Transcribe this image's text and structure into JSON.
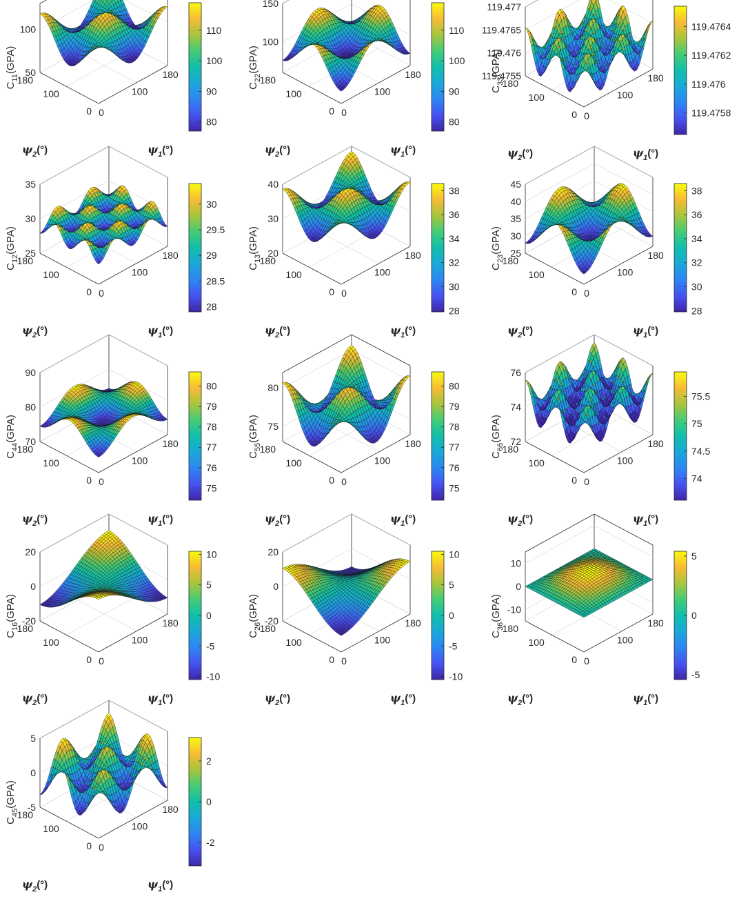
{
  "chart_data": [
    {
      "type": "surface",
      "id": "c11",
      "ylabel_main": "C",
      "ylabel_sub": "11",
      "ylabel_unit": "(GPA)",
      "zlim": [
        50,
        130
      ],
      "zticks": [
        "50",
        "100"
      ],
      "ztick_vals": [
        50,
        100
      ],
      "colorbar": {
        "range": [
          77,
          119
        ],
        "ticks": [
          "80",
          "90",
          "100",
          "110"
        ],
        "tick_vals": [
          80,
          90,
          100,
          110
        ]
      },
      "surface": {
        "base": 97,
        "a": 21,
        "b": 0,
        "c": 0,
        "d": 0,
        "e": 0
      },
      "x": {
        "label": "ψ",
        "sub": "1",
        "ticks": [
          "0",
          "100",
          "180"
        ]
      },
      "y": {
        "label": "ψ",
        "sub": "2",
        "ticks": [
          "0",
          "100",
          "180"
        ]
      }
    },
    {
      "type": "surface",
      "id": "c22",
      "ylabel_main": "C",
      "ylabel_sub": "22",
      "ylabel_unit": "(GPA)",
      "zlim": [
        60,
        150
      ],
      "zticks": [
        "100",
        "150"
      ],
      "ztick_vals": [
        100,
        150
      ],
      "colorbar": {
        "range": [
          77,
          119
        ],
        "ticks": [
          "80",
          "90",
          "100",
          "110"
        ],
        "tick_vals": [
          80,
          90,
          100,
          110
        ]
      },
      "surface": {
        "base": 97,
        "a": -21,
        "b": 0,
        "c": 0,
        "d": 0,
        "e": 0
      },
      "x": {
        "label": "ψ",
        "sub": "1",
        "ticks": [
          "0",
          "100",
          "180"
        ]
      },
      "y": {
        "label": "ψ",
        "sub": "2",
        "ticks": [
          "0",
          "100",
          "180"
        ]
      }
    },
    {
      "type": "surface",
      "id": "c33",
      "ylabel_main": "C",
      "ylabel_sub": "33",
      "ylabel_unit": "(GPA)",
      "zlim": [
        119.4755,
        119.477
      ],
      "zticks": [
        "119.4755",
        "119.476",
        "119.4765",
        "119.477"
      ],
      "ztick_vals": [
        119.4755,
        119.476,
        119.4765,
        119.477
      ],
      "colorbar": {
        "range": [
          119.47565,
          119.47654
        ],
        "ticks": [
          "119.4758",
          "119.476",
          "119.4762",
          "119.4764"
        ],
        "tick_vals": [
          119.4758,
          119.476,
          119.4762,
          119.4764
        ]
      },
      "surface": {
        "base": 119.4761,
        "a": 0,
        "b": 0,
        "c": 0.00044,
        "d": 0,
        "e": 0
      },
      "x": {
        "label": "ψ",
        "sub": "1",
        "ticks": [
          "0",
          "100",
          "180"
        ]
      },
      "y": {
        "label": "ψ",
        "sub": "2",
        "ticks": [
          "0",
          "100",
          "180"
        ]
      }
    },
    {
      "type": "surface",
      "id": "c12",
      "ylabel_main": "C",
      "ylabel_sub": "12",
      "ylabel_unit": "(GPA)",
      "zlim": [
        25,
        35
      ],
      "zticks": [
        "25",
        "30",
        "35"
      ],
      "ztick_vals": [
        25,
        30,
        35
      ],
      "colorbar": {
        "range": [
          27.9,
          30.4
        ],
        "ticks": [
          "28",
          "28.5",
          "29",
          "29.5",
          "30"
        ],
        "tick_vals": [
          28,
          28.5,
          29,
          29.5,
          30
        ]
      },
      "surface": {
        "base": 29.15,
        "a": 0,
        "b": 0,
        "c": -1.25,
        "d": 0,
        "e": 0
      },
      "x": {
        "label": "ψ",
        "sub": "1",
        "ticks": [
          "0",
          "100",
          "180"
        ]
      },
      "y": {
        "label": "ψ",
        "sub": "2",
        "ticks": [
          "0",
          "100",
          "180"
        ]
      }
    },
    {
      "type": "surface",
      "id": "c13",
      "ylabel_main": "C",
      "ylabel_sub": "13",
      "ylabel_unit": "(GPA)",
      "zlim": [
        20,
        40
      ],
      "zticks": [
        "20",
        "30",
        "40"
      ],
      "ztick_vals": [
        20,
        30,
        40
      ],
      "colorbar": {
        "range": [
          27.9,
          38.6
        ],
        "ticks": [
          "28",
          "30",
          "32",
          "34",
          "36",
          "38"
        ],
        "tick_vals": [
          28,
          30,
          32,
          34,
          36,
          38
        ]
      },
      "surface": {
        "base": 33.25,
        "a": 5.3,
        "b": 0,
        "c": 0,
        "d": 0,
        "e": 0
      },
      "x": {
        "label": "ψ",
        "sub": "1",
        "ticks": [
          "0",
          "100",
          "180"
        ]
      },
      "y": {
        "label": "ψ",
        "sub": "2",
        "ticks": [
          "0",
          "100",
          "180"
        ]
      }
    },
    {
      "type": "surface",
      "id": "c23",
      "ylabel_main": "C",
      "ylabel_sub": "23",
      "ylabel_unit": "(GPA)",
      "zlim": [
        25,
        45
      ],
      "zticks": [
        "25",
        "30",
        "35",
        "40",
        "45"
      ],
      "ztick_vals": [
        25,
        30,
        35,
        40,
        45
      ],
      "colorbar": {
        "range": [
          27.9,
          38.6
        ],
        "ticks": [
          "28",
          "30",
          "32",
          "34",
          "36",
          "38"
        ],
        "tick_vals": [
          28,
          30,
          32,
          34,
          36,
          38
        ]
      },
      "surface": {
        "base": 33.25,
        "a": -5.3,
        "b": 0,
        "c": 0,
        "d": 0,
        "e": 0
      },
      "x": {
        "label": "ψ",
        "sub": "1",
        "ticks": [
          "0",
          "100",
          "180"
        ]
      },
      "y": {
        "label": "ψ",
        "sub": "2",
        "ticks": [
          "0",
          "100",
          "180"
        ]
      }
    },
    {
      "type": "surface",
      "id": "c44",
      "ylabel_main": "C",
      "ylabel_sub": "44",
      "ylabel_unit": "(GPA)",
      "zlim": [
        70,
        90
      ],
      "zticks": [
        "70",
        "80",
        "90"
      ],
      "ztick_vals": [
        70,
        80,
        90
      ],
      "colorbar": {
        "range": [
          74.4,
          80.7
        ],
        "ticks": [
          "75",
          "76",
          "77",
          "78",
          "79",
          "80"
        ],
        "tick_vals": [
          75,
          76,
          77,
          78,
          79,
          80
        ]
      },
      "surface": {
        "base": 77.55,
        "a": -3.1,
        "b": 0,
        "c": 0,
        "d": 0,
        "e": 0
      },
      "x": {
        "label": "ψ",
        "sub": "1",
        "ticks": [
          "0",
          "100",
          "180"
        ]
      },
      "y": {
        "label": "ψ",
        "sub": "2",
        "ticks": [
          "0",
          "100",
          "180"
        ]
      }
    },
    {
      "type": "surface",
      "id": "c55",
      "ylabel_main": "C",
      "ylabel_sub": "55",
      "ylabel_unit": "(GPA)",
      "zlim": [
        73,
        82
      ],
      "zticks": [
        "75",
        "80"
      ],
      "ztick_vals": [
        75,
        80
      ],
      "colorbar": {
        "range": [
          74.4,
          80.7
        ],
        "ticks": [
          "75",
          "76",
          "77",
          "78",
          "79",
          "80"
        ],
        "tick_vals": [
          75,
          76,
          77,
          78,
          79,
          80
        ]
      },
      "surface": {
        "base": 77.55,
        "a": 3.1,
        "b": 0,
        "c": 0,
        "d": 0,
        "e": 0
      },
      "x": {
        "label": "ψ",
        "sub": "1",
        "ticks": [
          "0",
          "100",
          "180"
        ]
      },
      "y": {
        "label": "ψ",
        "sub": "2",
        "ticks": [
          "0",
          "100",
          "180"
        ]
      }
    },
    {
      "type": "surface",
      "id": "c66",
      "ylabel_main": "C",
      "ylabel_sub": "66",
      "ylabel_unit": "(GPA)",
      "zlim": [
        72,
        76
      ],
      "zticks": [
        "72",
        "74",
        "76"
      ],
      "ztick_vals": [
        72,
        74,
        76
      ],
      "colorbar": {
        "range": [
          73.6,
          75.95
        ],
        "ticks": [
          "74",
          "74.5",
          "75",
          "75.5"
        ],
        "tick_vals": [
          74,
          74.5,
          75,
          75.5
        ]
      },
      "surface": {
        "base": 74.4,
        "a": 0,
        "b": 0,
        "c": 1.15,
        "d": 0,
        "e": 0
      },
      "x": {
        "label": "ψ",
        "sub": "1",
        "ticks": [
          "0",
          "100",
          "180"
        ]
      },
      "y": {
        "label": "ψ",
        "sub": "2",
        "ticks": [
          "0",
          "100",
          "180"
        ]
      }
    },
    {
      "type": "surface",
      "id": "c16",
      "ylabel_main": "C",
      "ylabel_sub": "16",
      "ylabel_unit": "(GPA)",
      "zlim": [
        -20,
        20
      ],
      "zticks": [
        "-20",
        "0",
        "20"
      ],
      "ztick_vals": [
        -20,
        0,
        20
      ],
      "colorbar": {
        "range": [
          -10.5,
          10.5
        ],
        "ticks": [
          "-10",
          "-5",
          "0",
          "5",
          "10"
        ],
        "tick_vals": [
          -10,
          -5,
          0,
          5,
          10
        ]
      },
      "surface": {
        "base": 0,
        "a": 0,
        "b": 10.5,
        "c": 0,
        "d": 0,
        "e": 0
      },
      "x": {
        "label": "ψ",
        "sub": "1",
        "ticks": [
          "0",
          "100",
          "180"
        ]
      },
      "y": {
        "label": "ψ",
        "sub": "2",
        "ticks": [
          "0",
          "100",
          "180"
        ]
      }
    },
    {
      "type": "surface",
      "id": "c26",
      "ylabel_main": "C",
      "ylabel_sub": "26",
      "ylabel_unit": "(GPA)",
      "zlim": [
        -20,
        20
      ],
      "zticks": [
        "-20",
        "0",
        "20"
      ],
      "ztick_vals": [
        -20,
        0,
        20
      ],
      "colorbar": {
        "range": [
          -10.5,
          10.5
        ],
        "ticks": [
          "-10",
          "-5",
          "0",
          "5",
          "10"
        ],
        "tick_vals": [
          -10,
          -5,
          0,
          5,
          10
        ]
      },
      "surface": {
        "base": 0,
        "a": 0,
        "b": -10.5,
        "c": 0,
        "d": 0,
        "e": 0
      },
      "x": {
        "label": "ψ",
        "sub": "1",
        "ticks": [
          "0",
          "100",
          "180"
        ]
      },
      "y": {
        "label": "ψ",
        "sub": "2",
        "ticks": [
          "0",
          "100",
          "180"
        ]
      }
    },
    {
      "type": "surface",
      "id": "c36",
      "ylabel_main": "C",
      "ylabel_sub": "36",
      "ylabel_unit": "(GPA)",
      "zlim": [
        -15,
        15
      ],
      "zticks": [
        "-10",
        "0",
        "10"
      ],
      "ztick_vals": [
        -10,
        0,
        10
      ],
      "colorbar": {
        "range": [
          -5.4,
          5.4
        ],
        "ticks": [
          "-5",
          "0",
          "5"
        ],
        "tick_vals": [
          -5,
          0,
          5
        ]
      },
      "surface": {
        "base": 0,
        "a": 0,
        "b": 0,
        "c": 0,
        "d": 5.4,
        "e": 0
      },
      "x": {
        "label": "ψ",
        "sub": "1",
        "ticks": [
          "0",
          "100",
          "180"
        ]
      },
      "y": {
        "label": "ψ",
        "sub": "2",
        "ticks": [
          "0",
          "100",
          "180"
        ]
      }
    },
    {
      "type": "surface",
      "id": "c45",
      "ylabel_main": "C",
      "ylabel_sub": "45",
      "ylabel_unit": "(GPA)",
      "zlim": [
        -5,
        5
      ],
      "zticks": [
        "-5",
        "0",
        "5"
      ],
      "ztick_vals": [
        -5,
        0,
        5
      ],
      "colorbar": {
        "range": [
          -3.15,
          3.15
        ],
        "ticks": [
          "-2",
          "0",
          "2"
        ],
        "tick_vals": [
          -2,
          0,
          2
        ]
      },
      "surface": {
        "base": 0,
        "a": 0,
        "b": 0,
        "c": 0,
        "d": 0,
        "e": 3.15
      },
      "x": {
        "label": "ψ",
        "sub": "1",
        "ticks": [
          "0",
          "100",
          "180"
        ]
      },
      "y": {
        "label": "ψ",
        "sub": "2",
        "ticks": [
          "0",
          "100",
          "180"
        ]
      }
    }
  ]
}
